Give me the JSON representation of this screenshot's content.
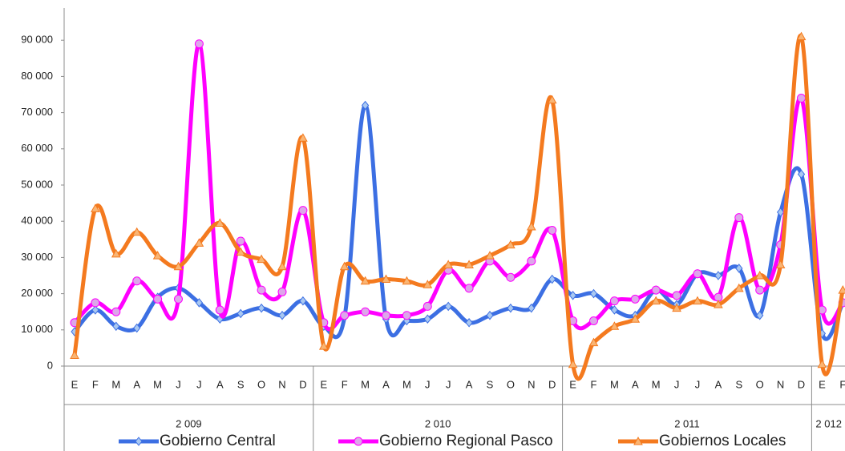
{
  "chart_data": {
    "type": "line",
    "categories": [
      "E",
      "F",
      "M",
      "A",
      "M",
      "J",
      "J",
      "A",
      "S",
      "O",
      "N",
      "D",
      "E",
      "F",
      "M",
      "A",
      "M",
      "J",
      "J",
      "A",
      "S",
      "O",
      "N",
      "D",
      "E",
      "F",
      "M",
      "A",
      "M",
      "J",
      "J",
      "A",
      "S",
      "O",
      "N",
      "D",
      "E",
      "F"
    ],
    "x_groups": [
      "2 009",
      "2 010",
      "2 011",
      "2 012"
    ],
    "ylim": [
      0,
      100000
    ],
    "yticks": [
      {
        "value": 0,
        "label": "0"
      },
      {
        "value": 10000,
        "label": "10 000"
      },
      {
        "value": 20000,
        "label": "20 000"
      },
      {
        "value": 30000,
        "label": "30 000"
      },
      {
        "value": 40000,
        "label": "40 000"
      },
      {
        "value": 50000,
        "label": "50 000"
      },
      {
        "value": 60000,
        "label": "60 000"
      },
      {
        "value": 70000,
        "label": "70 000"
      },
      {
        "value": 80000,
        "label": "80 000"
      },
      {
        "value": 90000,
        "label": "90 000"
      }
    ],
    "smooth": true,
    "series": [
      {
        "name": "Gobierno Central",
        "color": "#3c6fe3",
        "marker": "diamond",
        "marker_fill": "#a9c8f2",
        "values": [
          9500,
          15500,
          11000,
          10500,
          19000,
          21500,
          17500,
          13000,
          14500,
          16000,
          14000,
          18000,
          11000,
          13500,
          72000,
          13000,
          12500,
          13000,
          16500,
          12000,
          14000,
          16000,
          16000,
          24000,
          19500,
          20000,
          15500,
          14000,
          21000,
          17000,
          25500,
          25000,
          27000,
          14000,
          42500,
          53000,
          9000,
          17500
        ]
      },
      {
        "name": "Gobierno Regional Pasco",
        "color": "#ff00ff",
        "marker": "circle",
        "marker_fill": "#dda6ea",
        "values": [
          12000,
          17500,
          15000,
          23500,
          18500,
          18500,
          89000,
          15500,
          34500,
          21000,
          20500,
          43000,
          12000,
          14000,
          15000,
          14000,
          14000,
          16500,
          26500,
          21500,
          29000,
          24500,
          29000,
          37500,
          12500,
          12500,
          18000,
          18500,
          21000,
          19500,
          25500,
          19000,
          41000,
          21000,
          33500,
          74000,
          15500,
          17500
        ]
      },
      {
        "name": "Gobiernos Locales",
        "color": "#f47a1f",
        "marker": "triangle",
        "marker_fill": "#f9b574",
        "values": [
          3000,
          43500,
          31000,
          37000,
          30500,
          27500,
          34000,
          39500,
          31500,
          29500,
          27500,
          63000,
          5500,
          27500,
          23500,
          24000,
          23500,
          22500,
          28000,
          28000,
          30500,
          33500,
          38500,
          73500,
          500,
          6500,
          11000,
          13000,
          18000,
          16000,
          18000,
          17000,
          21500,
          25000,
          28000,
          91000,
          500,
          21000
        ]
      }
    ]
  }
}
